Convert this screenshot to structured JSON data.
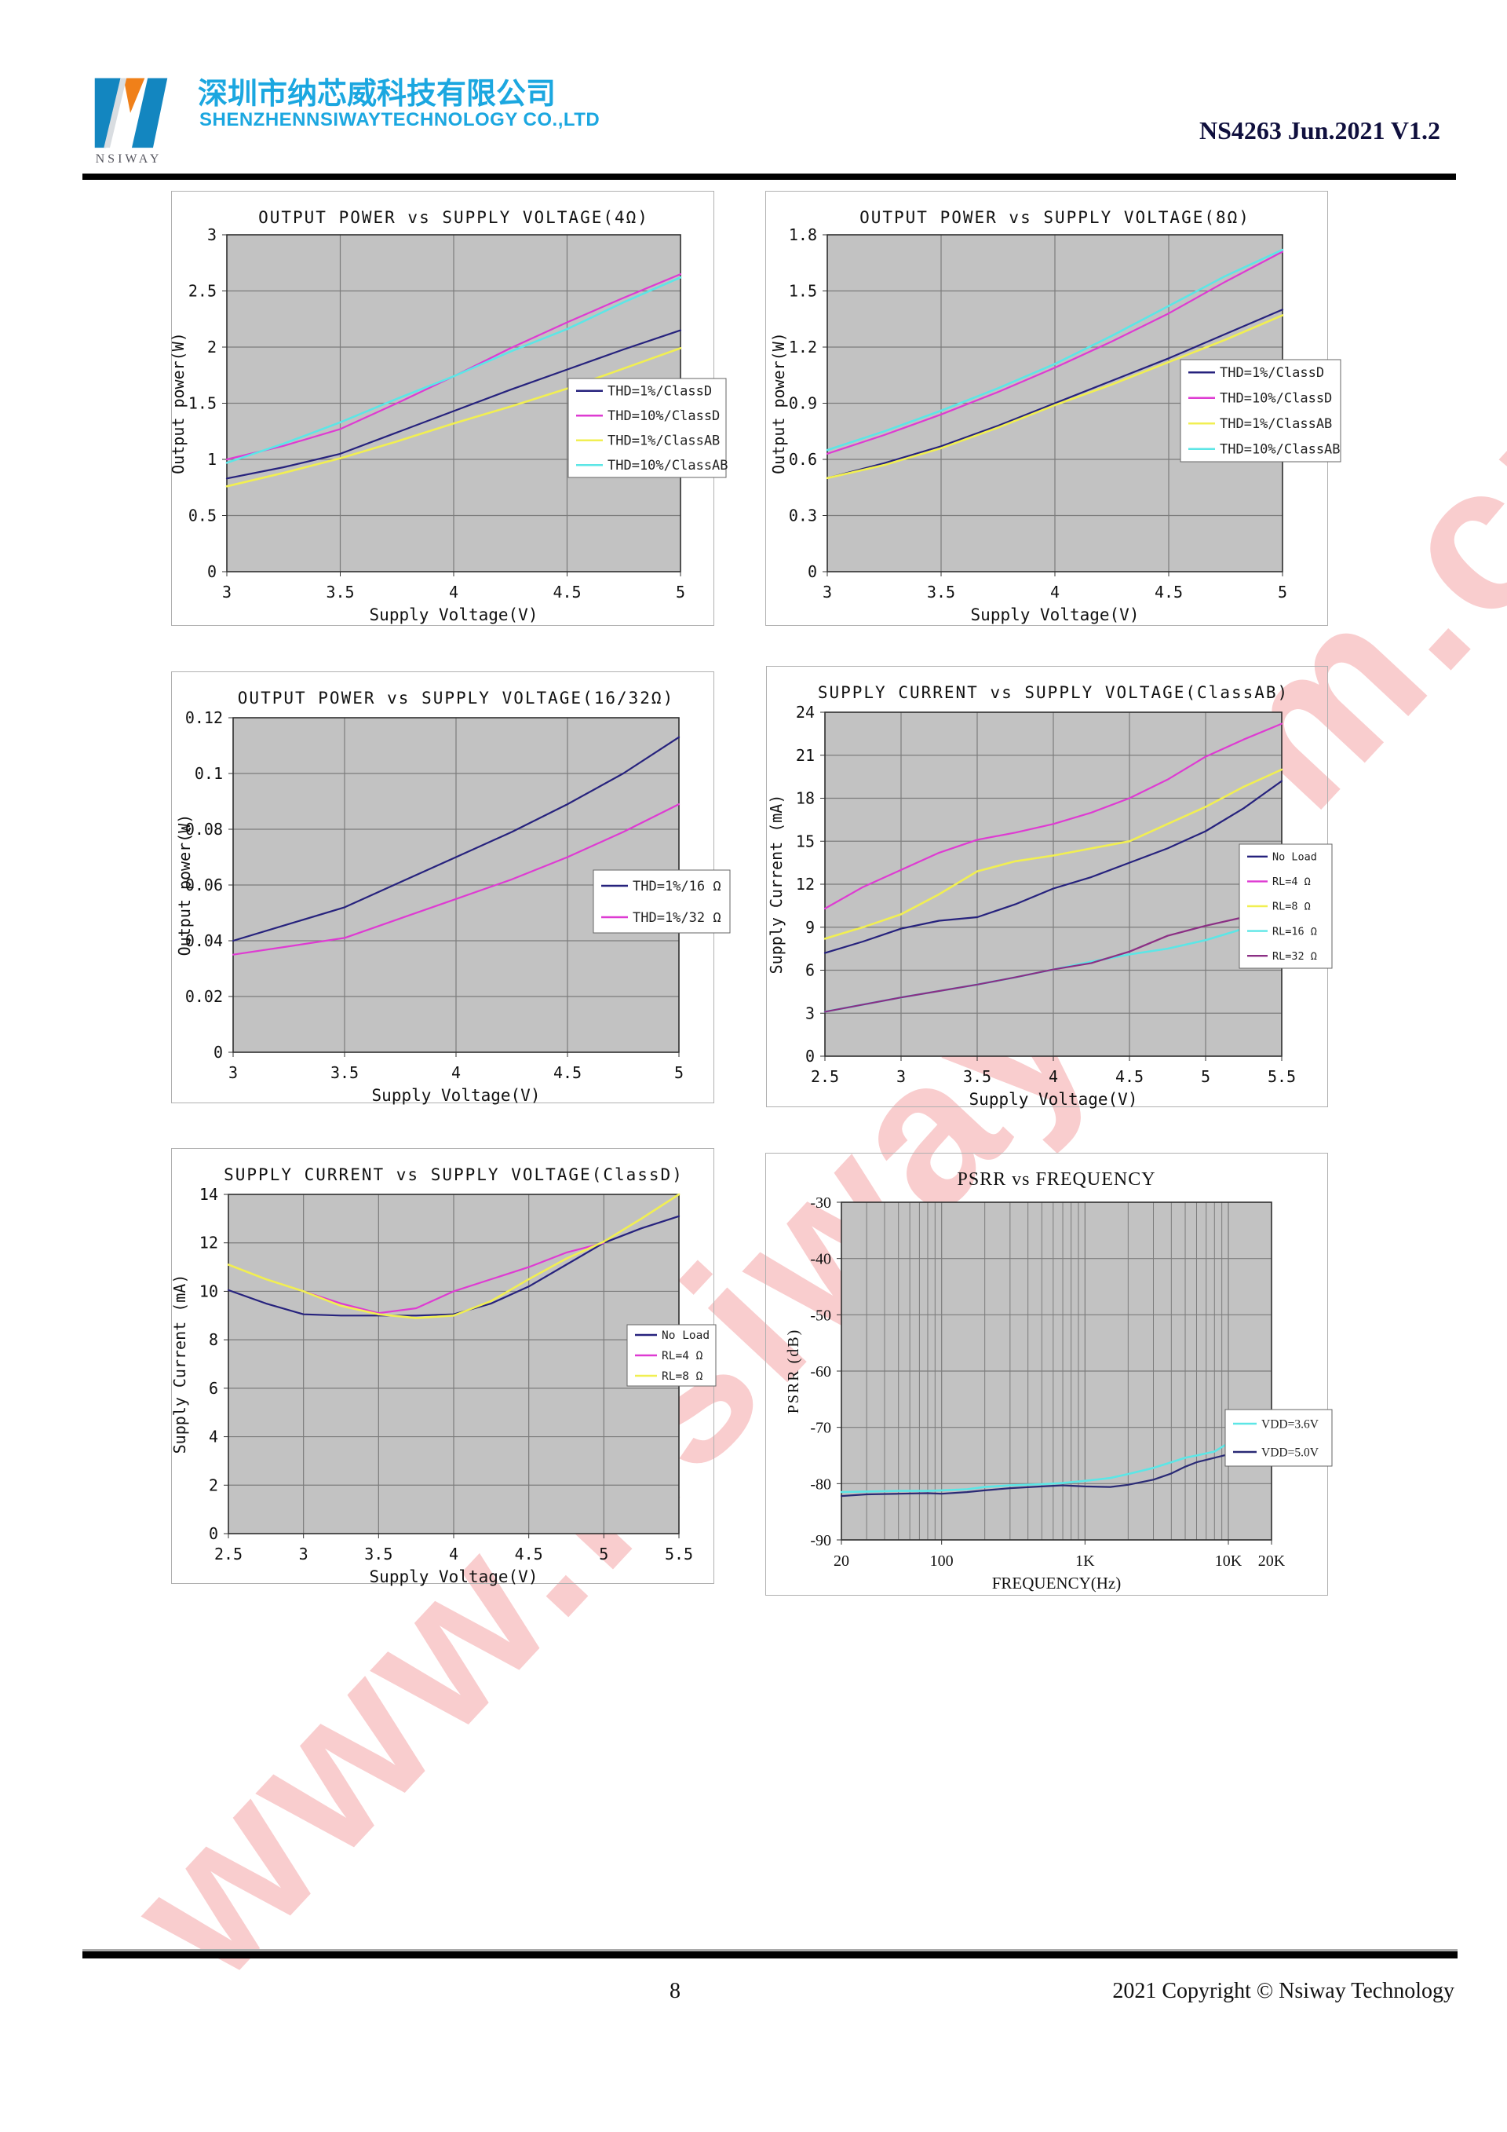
{
  "header": {
    "logo_caption": "NSIWAY",
    "company_cn": "深圳市纳芯威科技有限公司",
    "company_en": "SHENZHENNSIWAYTECHNOLOGY CO.,LTD",
    "doc_id": "NS4263 Jun.2021 V1.2"
  },
  "watermark": {
    "text": "www.nsiway.com.cn",
    "color": "rgba(235,88,92,0.30)"
  },
  "footer": {
    "page_number": "8",
    "copyright": "2021 Copyright © Nsiway Technology"
  },
  "colors": {
    "brand_cyan": "#1ba7e0",
    "logo_blue": "#1386c0",
    "logo_orange": "#f08019",
    "plot_bg": "#c2c2c2",
    "grid": "#7c7c7c",
    "plot_border": "#2f2f2f",
    "navy": "#26227d",
    "magenta": "#de3bd2",
    "yellow": "#f1ef52",
    "cyan": "#5ce6e6",
    "purple": "#8b2f84"
  },
  "chart_data": [
    {
      "type": "line",
      "title": "OUTPUT POWER vs SUPPLY VOLTAGE(4Ω)",
      "xlabel": "Supply Voltage(V)",
      "ylabel": "Output power(W)",
      "xscale": "linear",
      "xlim": [
        3,
        5
      ],
      "ylim": [
        0,
        3
      ],
      "xticks": [
        3,
        3.5,
        4,
        4.5,
        5
      ],
      "xtick_labels": [
        "3",
        "3.5",
        "4",
        "4.5",
        "5"
      ],
      "yticks": [
        0,
        0.5,
        1,
        1.5,
        2,
        2.5,
        3
      ],
      "ytick_labels": [
        "0",
        "0.5",
        "1",
        "1.5",
        "2",
        "2.5",
        "3"
      ],
      "grid": true,
      "legend_position": "right-middle",
      "series": [
        {
          "name": "THD=1%/ClassD",
          "color": "#26227d",
          "x": [
            3,
            3.25,
            3.5,
            3.75,
            4,
            4.25,
            4.5,
            4.75,
            5
          ],
          "y": [
            0.83,
            0.93,
            1.05,
            1.24,
            1.43,
            1.62,
            1.8,
            1.98,
            2.15
          ]
        },
        {
          "name": "THD=10%/ClassD",
          "color": "#de3bd2",
          "x": [
            3,
            3.25,
            3.5,
            3.75,
            4,
            4.25,
            4.5,
            4.75,
            5
          ],
          "y": [
            1.0,
            1.12,
            1.27,
            1.5,
            1.74,
            1.99,
            2.22,
            2.44,
            2.65
          ]
        },
        {
          "name": "THD=1%/ClassAB",
          "color": "#f1ef52",
          "x": [
            3,
            3.25,
            3.5,
            3.75,
            4,
            4.25,
            4.5,
            4.75,
            5
          ],
          "y": [
            0.76,
            0.88,
            1.01,
            1.16,
            1.32,
            1.47,
            1.63,
            1.81,
            1.99
          ]
        },
        {
          "name": "THD=10%/ClassAB",
          "color": "#5ce6e6",
          "x": [
            3,
            3.25,
            3.5,
            3.75,
            4,
            4.25,
            4.5,
            4.75,
            5
          ],
          "y": [
            0.97,
            1.14,
            1.33,
            1.54,
            1.74,
            1.96,
            2.16,
            2.4,
            2.62
          ]
        }
      ]
    },
    {
      "type": "line",
      "title": "OUTPUT POWER vs SUPPLY VOLTAGE(8Ω)",
      "xlabel": "Supply Voltage(V)",
      "ylabel": "Output power(W)",
      "xscale": "linear",
      "xlim": [
        3,
        5
      ],
      "ylim": [
        0,
        1.8
      ],
      "xticks": [
        3,
        3.5,
        4,
        4.5,
        5
      ],
      "xtick_labels": [
        "3",
        "3.5",
        "4",
        "4.5",
        "5"
      ],
      "yticks": [
        0,
        0.3,
        0.6,
        0.9,
        1.2,
        1.5,
        1.8
      ],
      "ytick_labels": [
        "0",
        "0.3",
        "0.6",
        "0.9",
        "1.2",
        "1.5",
        "1.8"
      ],
      "grid": true,
      "legend_position": "right-middle",
      "series": [
        {
          "name": "THD=1%/ClassD",
          "color": "#26227d",
          "x": [
            3,
            3.25,
            3.5,
            3.75,
            4,
            4.25,
            4.5,
            4.75,
            5
          ],
          "y": [
            0.5,
            0.58,
            0.67,
            0.78,
            0.9,
            1.02,
            1.14,
            1.27,
            1.4
          ]
        },
        {
          "name": "THD=10%/ClassD",
          "color": "#de3bd2",
          "x": [
            3,
            3.25,
            3.5,
            3.75,
            4,
            4.25,
            4.5,
            4.75,
            5
          ],
          "y": [
            0.63,
            0.73,
            0.84,
            0.96,
            1.09,
            1.23,
            1.38,
            1.55,
            1.71
          ]
        },
        {
          "name": "THD=1%/ClassAB",
          "color": "#f1ef52",
          "x": [
            3,
            3.25,
            3.5,
            3.75,
            4,
            4.25,
            4.5,
            4.75,
            5
          ],
          "y": [
            0.5,
            0.57,
            0.66,
            0.77,
            0.89,
            1.0,
            1.12,
            1.24,
            1.37
          ]
        },
        {
          "name": "THD=10%/ClassAB",
          "color": "#5ce6e6",
          "x": [
            3,
            3.25,
            3.5,
            3.75,
            4,
            4.25,
            4.5,
            4.75,
            5
          ],
          "y": [
            0.65,
            0.75,
            0.86,
            0.98,
            1.11,
            1.26,
            1.42,
            1.58,
            1.72
          ]
        }
      ]
    },
    {
      "type": "line",
      "title": "OUTPUT POWER vs SUPPLY VOLTAGE(16/32Ω)",
      "xlabel": "Supply Voltage(V)",
      "ylabel": "Output power(W)",
      "xscale": "linear",
      "xlim": [
        3,
        5
      ],
      "ylim": [
        0,
        0.12
      ],
      "xticks": [
        3,
        3.5,
        4,
        4.5,
        5
      ],
      "xtick_labels": [
        "3",
        "3.5",
        "4",
        "4.5",
        "5"
      ],
      "yticks": [
        0,
        0.02,
        0.04,
        0.06,
        0.08,
        0.1,
        0.12
      ],
      "ytick_labels": [
        "0",
        "0.02",
        "0.04",
        "0.06",
        "0.08",
        "0.1",
        "0.12"
      ],
      "grid": true,
      "legend_position": "right-middle",
      "series": [
        {
          "name": "THD=1%/16 Ω",
          "color": "#26227d",
          "x": [
            3,
            3.25,
            3.5,
            3.75,
            4,
            4.25,
            4.5,
            4.75,
            5
          ],
          "y": [
            0.04,
            0.046,
            0.052,
            0.061,
            0.07,
            0.079,
            0.089,
            0.1,
            0.113
          ]
        },
        {
          "name": "THD=1%/32 Ω",
          "color": "#de3bd2",
          "x": [
            3,
            3.25,
            3.5,
            3.75,
            4,
            4.25,
            4.5,
            4.75,
            5
          ],
          "y": [
            0.035,
            0.038,
            0.041,
            0.048,
            0.055,
            0.062,
            0.07,
            0.079,
            0.089
          ]
        }
      ]
    },
    {
      "type": "line",
      "title": "SUPPLY CURRENT vs SUPPLY VOLTAGE(ClassAB)",
      "xlabel": "Supply Voltage(V)",
      "ylabel": "Supply Current (mA)",
      "xscale": "linear",
      "xlim": [
        2.5,
        5.5
      ],
      "ylim": [
        0,
        24
      ],
      "xticks": [
        2.5,
        3,
        3.5,
        4,
        4.5,
        5,
        5.5
      ],
      "xtick_labels": [
        "2.5",
        "3",
        "3.5",
        "4",
        "4.5",
        "5",
        "5.5"
      ],
      "yticks": [
        0,
        3,
        6,
        9,
        12,
        15,
        18,
        21,
        24
      ],
      "ytick_labels": [
        "0",
        "3",
        "6",
        "9",
        "12",
        "15",
        "18",
        "21",
        "24"
      ],
      "grid": true,
      "legend_position": "right-middle",
      "series": [
        {
          "name": "No Load",
          "color": "#26227d",
          "x": [
            2.5,
            2.75,
            3,
            3.25,
            3.5,
            3.75,
            4,
            4.25,
            4.5,
            4.75,
            5,
            5.25,
            5.5
          ],
          "y": [
            7.2,
            8.0,
            8.9,
            9.45,
            9.7,
            10.6,
            11.7,
            12.5,
            13.5,
            14.5,
            15.7,
            17.3,
            19.2
          ]
        },
        {
          "name": "RL=4 Ω",
          "color": "#de3bd2",
          "x": [
            2.5,
            2.75,
            3,
            3.25,
            3.5,
            3.75,
            4,
            4.25,
            4.5,
            4.75,
            5,
            5.25,
            5.5
          ],
          "y": [
            10.3,
            11.8,
            13.0,
            14.2,
            15.1,
            15.6,
            16.2,
            17.0,
            18.0,
            19.3,
            20.9,
            22.1,
            23.2
          ]
        },
        {
          "name": "RL=8 Ω",
          "color": "#f1ef52",
          "x": [
            2.5,
            2.75,
            3,
            3.25,
            3.5,
            3.75,
            4,
            4.25,
            4.5,
            4.75,
            5,
            5.25,
            5.5
          ],
          "y": [
            8.2,
            9.0,
            9.9,
            11.3,
            12.9,
            13.6,
            14.0,
            14.5,
            15.0,
            16.2,
            17.4,
            18.8,
            20.0
          ]
        },
        {
          "name": "RL=16 Ω",
          "color": "#5ce6e6",
          "x": [
            2.5,
            2.75,
            3,
            3.25,
            3.5,
            3.75,
            4,
            4.25,
            4.5,
            4.75,
            5,
            5.25,
            5.5
          ],
          "y": [
            3.1,
            3.6,
            4.1,
            4.55,
            5.0,
            5.5,
            6.05,
            6.6,
            7.1,
            7.5,
            8.1,
            8.9,
            10.1
          ]
        },
        {
          "name": "RL=32 Ω",
          "color": "#8b2f84",
          "x": [
            2.5,
            2.75,
            3,
            3.25,
            3.5,
            3.75,
            4,
            4.25,
            4.5,
            4.75,
            5,
            5.25,
            5.5
          ],
          "y": [
            3.1,
            3.6,
            4.1,
            4.55,
            5.0,
            5.5,
            6.05,
            6.5,
            7.3,
            8.4,
            9.1,
            9.7,
            10.1
          ]
        }
      ]
    },
    {
      "type": "line",
      "title": "SUPPLY CURRENT vs SUPPLY VOLTAGE(ClassD)",
      "xlabel": "Supply Voltage(V)",
      "ylabel": "Supply Current (mA)",
      "xscale": "linear",
      "xlim": [
        2.5,
        5.5
      ],
      "ylim": [
        0,
        14
      ],
      "xticks": [
        2.5,
        3,
        3.5,
        4,
        4.5,
        5,
        5.5
      ],
      "xtick_labels": [
        "2.5",
        "3",
        "3.5",
        "4",
        "4.5",
        "5",
        "5.5"
      ],
      "yticks": [
        0,
        2,
        4,
        6,
        8,
        10,
        12,
        14
      ],
      "ytick_labels": [
        "0",
        "2",
        "4",
        "6",
        "8",
        "10",
        "12",
        "14"
      ],
      "grid": true,
      "legend_position": "right-middle",
      "series": [
        {
          "name": "No Load",
          "color": "#26227d",
          "x": [
            2.5,
            2.75,
            3,
            3.25,
            3.5,
            3.75,
            4,
            4.25,
            4.5,
            4.75,
            5,
            5.25,
            5.5
          ],
          "y": [
            10.05,
            9.5,
            9.05,
            9.0,
            9.0,
            9.0,
            9.05,
            9.5,
            10.2,
            11.1,
            12.0,
            12.6,
            13.1
          ]
        },
        {
          "name": "RL=4 Ω",
          "color": "#de3bd2",
          "x": [
            2.5,
            2.75,
            3,
            3.25,
            3.5,
            3.75,
            4,
            4.25,
            4.5,
            4.75,
            5
          ],
          "y": [
            11.1,
            10.5,
            10.0,
            9.5,
            9.1,
            9.3,
            10.0,
            10.5,
            11.0,
            11.6,
            12.0
          ]
        },
        {
          "name": "RL=8 Ω",
          "color": "#f1ef52",
          "x": [
            2.5,
            2.75,
            3,
            3.25,
            3.5,
            3.75,
            4,
            4.25,
            4.5,
            4.75,
            5,
            5.25,
            5.5
          ],
          "y": [
            11.1,
            10.5,
            10.0,
            9.4,
            9.05,
            8.9,
            9.0,
            9.6,
            10.5,
            11.35,
            12.05,
            13.0,
            14.0
          ]
        }
      ]
    },
    {
      "type": "line",
      "title": "PSRR vs FREQUENCY",
      "xlabel": "FREQUENCY(Hz)",
      "ylabel": "PSRR (dB)",
      "xscale": "log",
      "xlim": [
        20,
        20000
      ],
      "ylim": [
        -90,
        -30
      ],
      "xticks": [
        20,
        100,
        1000,
        10000,
        20000
      ],
      "xtick_labels": [
        "20",
        "100",
        "1K",
        "10K",
        "20K"
      ],
      "yticks": [
        -30,
        -40,
        -50,
        -60,
        -70,
        -80,
        -90
      ],
      "ytick_labels": [
        "-30",
        "-40",
        "-50",
        "-60",
        "-70",
        "-80",
        "-90"
      ],
      "grid": true,
      "legend_position": "right-middle",
      "series": [
        {
          "name": "VDD=3.6V",
          "color": "#5ce6e6",
          "x": [
            20,
            30,
            50,
            80,
            100,
            150,
            200,
            300,
            500,
            700,
            1000,
            1500,
            2000,
            3000,
            4000,
            5000,
            6000,
            8000,
            10000,
            15000,
            20000
          ],
          "y": [
            -81.5,
            -81.4,
            -81.3,
            -81.3,
            -81.2,
            -81.0,
            -80.6,
            -80.3,
            -80.1,
            -79.9,
            -79.5,
            -79.0,
            -78.3,
            -77.2,
            -76.2,
            -75.4,
            -75.0,
            -74.3,
            -72.8,
            -71.5,
            -71.1
          ]
        },
        {
          "name": "VDD=5.0V",
          "color": "#2a2a75",
          "x": [
            20,
            30,
            50,
            80,
            100,
            150,
            200,
            300,
            500,
            700,
            1000,
            1500,
            2000,
            3000,
            4000,
            5000,
            6000,
            8000,
            10000,
            15000,
            20000
          ],
          "y": [
            -82.2,
            -81.9,
            -81.8,
            -81.7,
            -81.8,
            -81.5,
            -81.2,
            -80.8,
            -80.5,
            -80.3,
            -80.5,
            -80.6,
            -80.2,
            -79.3,
            -78.2,
            -77.0,
            -76.2,
            -75.4,
            -74.8,
            -73.8,
            -73.4
          ]
        }
      ]
    }
  ]
}
